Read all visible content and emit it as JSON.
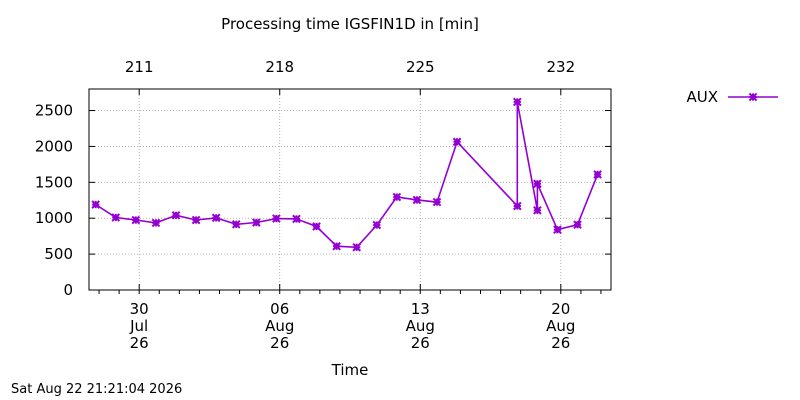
{
  "chart_data": {
    "type": "line",
    "title": "Processing time IGSFIN1D in [min]",
    "xlabel": "Time",
    "ylabel": "",
    "ylim": [
      0,
      2800
    ],
    "xlim": [
      "2026-07-27T12:00",
      "2026-08-22T12:00"
    ],
    "yticks": [
      0,
      500,
      1000,
      1500,
      2000,
      2500
    ],
    "xticks": [
      {
        "date": "2026-07-30",
        "label": [
          "30",
          "Jul",
          "26"
        ]
      },
      {
        "date": "2026-08-06",
        "label": [
          "06",
          "Aug",
          "26"
        ]
      },
      {
        "date": "2026-08-13",
        "label": [
          "13",
          "Aug",
          "26"
        ]
      },
      {
        "date": "2026-08-20",
        "label": [
          "20",
          "Aug",
          "26"
        ]
      }
    ],
    "top_ticks": [
      {
        "date": "2026-07-30",
        "label": "211"
      },
      {
        "date": "2026-08-06",
        "label": "218"
      },
      {
        "date": "2026-08-13",
        "label": "225"
      },
      {
        "date": "2026-08-20",
        "label": "232"
      }
    ],
    "grid": true,
    "legend": "top-right outside",
    "series": [
      {
        "name": "AUX",
        "color": "#9400d3",
        "points": [
          {
            "x": "2026-07-27T20:00",
            "y": 1190
          },
          {
            "x": "2026-07-28T20:00",
            "y": 1010
          },
          {
            "x": "2026-07-29T20:00",
            "y": 975
          },
          {
            "x": "2026-07-30T20:00",
            "y": 935
          },
          {
            "x": "2026-07-31T20:00",
            "y": 1040
          },
          {
            "x": "2026-08-01T20:00",
            "y": 975
          },
          {
            "x": "2026-08-02T20:00",
            "y": 1005
          },
          {
            "x": "2026-08-03T20:00",
            "y": 915
          },
          {
            "x": "2026-08-04T20:00",
            "y": 940
          },
          {
            "x": "2026-08-05T20:00",
            "y": 995
          },
          {
            "x": "2026-08-06T20:00",
            "y": 990
          },
          {
            "x": "2026-08-07T20:00",
            "y": 885
          },
          {
            "x": "2026-08-08T20:00",
            "y": 610
          },
          {
            "x": "2026-08-09T20:00",
            "y": 595
          },
          {
            "x": "2026-08-10T20:00",
            "y": 905
          },
          {
            "x": "2026-08-11T20:00",
            "y": 1295
          },
          {
            "x": "2026-08-12T20:00",
            "y": 1255
          },
          {
            "x": "2026-08-13T20:00",
            "y": 1225
          },
          {
            "x": "2026-08-14T20:00",
            "y": 2065
          },
          {
            "x": "2026-08-17T20:00",
            "y": 1170
          },
          {
            "x": "2026-08-17T20:00",
            "y": 2620
          },
          {
            "x": "2026-08-18T20:00",
            "y": 1110
          },
          {
            "x": "2026-08-18T20:00",
            "y": 1480
          },
          {
            "x": "2026-08-19T20:00",
            "y": 840
          },
          {
            "x": "2026-08-20T20:00",
            "y": 910
          },
          {
            "x": "2026-08-21T20:00",
            "y": 1610
          }
        ]
      }
    ]
  },
  "footer": {
    "timestamp": "Sat Aug 22 21:21:04 2026"
  }
}
